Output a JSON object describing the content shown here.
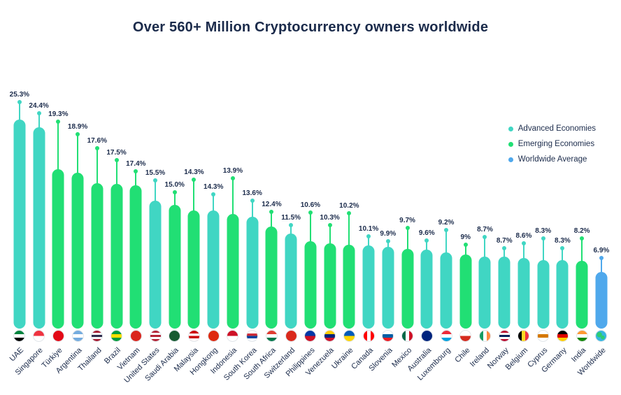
{
  "chart_data": {
    "type": "bar",
    "title": "Over 560+ Million Cryptocurrency owners worldwide",
    "unit": "%",
    "ylim": [
      0,
      26
    ],
    "grid": false,
    "legend_position": "right",
    "colors": {
      "advanced": "#40D6C3",
      "emerging": "#21DF74",
      "worldwide": "#4FA8EC",
      "title": "#1B2B4B",
      "label": "#1B2B4B"
    },
    "legend": [
      {
        "label": "Advanced Economies",
        "key": "advanced"
      },
      {
        "label": "Emerging Economies",
        "key": "emerging"
      },
      {
        "label": "Worldwide Average",
        "key": "worldwide"
      }
    ],
    "items": [
      {
        "name": "UAE",
        "label": "25.3%",
        "value": 25.3,
        "group": "advanced",
        "stem": 24,
        "flag": {
          "dir": "h",
          "stripes": [
            "#00843D",
            "#FFFFFF",
            "#000000"
          ]
        }
      },
      {
        "name": "Singapore",
        "label": "24.4%",
        "value": 24.4,
        "group": "advanced",
        "stem": 19,
        "flag": {
          "dir": "h",
          "stripes": [
            "#EF3340",
            "#FFFFFF"
          ]
        }
      },
      {
        "name": "Türkiye",
        "label": "19.3%",
        "value": 19.3,
        "group": "emerging",
        "stem": 67,
        "flag": {
          "dir": "h",
          "stripes": [
            "#E30A17"
          ]
        }
      },
      {
        "name": "Argentina",
        "label": "18.9%",
        "value": 18.9,
        "group": "emerging",
        "stem": 54,
        "flag": {
          "dir": "h",
          "stripes": [
            "#74ACDF",
            "#FFFFFF",
            "#74ACDF"
          ]
        }
      },
      {
        "name": "Thailand",
        "label": "17.6%",
        "value": 17.6,
        "group": "emerging",
        "stem": 49,
        "flag": {
          "dir": "h",
          "stripes": [
            "#A51931",
            "#F4F5F8",
            "#2D2A4A",
            "#F4F5F8",
            "#A51931"
          ]
        }
      },
      {
        "name": "Brazil",
        "label": "17.5%",
        "value": 17.5,
        "group": "emerging",
        "stem": 33,
        "flag": {
          "dir": "h",
          "stripes": [
            "#009C3B",
            "#FFDF00",
            "#009C3B"
          ]
        }
      },
      {
        "name": "Vietnam",
        "label": "17.4%",
        "value": 17.4,
        "group": "emerging",
        "stem": 19,
        "flag": {
          "dir": "h",
          "stripes": [
            "#DA251D"
          ]
        }
      },
      {
        "name": "United States",
        "label": "15.5%",
        "value": 15.5,
        "group": "advanced",
        "stem": 28,
        "flag": {
          "dir": "h",
          "stripes": [
            "#B22234",
            "#FFFFFF",
            "#B22234",
            "#FFFFFF",
            "#B22234"
          ]
        }
      },
      {
        "name": "Saudi Arabia",
        "label": "15.0%",
        "value": 15.0,
        "group": "emerging",
        "stem": 17,
        "flag": {
          "dir": "h",
          "stripes": [
            "#165B31"
          ]
        }
      },
      {
        "name": "Malaysia",
        "label": "14.3%",
        "value": 14.3,
        "group": "emerging",
        "stem": 43,
        "flag": {
          "dir": "h",
          "stripes": [
            "#CC0001",
            "#FFFFFF",
            "#CC0001",
            "#FFFFFF"
          ]
        }
      },
      {
        "name": "Hongkong",
        "label": "14.3%",
        "value": 14.3,
        "group": "advanced",
        "stem": 22,
        "flag": {
          "dir": "h",
          "stripes": [
            "#DE2910"
          ]
        }
      },
      {
        "name": "Indonesia",
        "label": "13.9%",
        "value": 13.9,
        "group": "emerging",
        "stem": 50,
        "flag": {
          "dir": "h",
          "stripes": [
            "#CE1126",
            "#FFFFFF"
          ]
        }
      },
      {
        "name": "South Korea",
        "label": "13.6%",
        "value": 13.6,
        "group": "advanced",
        "stem": 22,
        "flag": {
          "dir": "h",
          "stripes": [
            "#FFFFFF",
            "#CD2E3A",
            "#0047A0",
            "#FFFFFF"
          ]
        }
      },
      {
        "name": "South Africa",
        "label": "12.4%",
        "value": 12.4,
        "group": "emerging",
        "stem": 20,
        "flag": {
          "dir": "h",
          "stripes": [
            "#E03C31",
            "#FFFFFF",
            "#007749"
          ]
        }
      },
      {
        "name": "Switzerland",
        "label": "11.5%",
        "value": 11.5,
        "group": "advanced",
        "stem": 11,
        "flag": {
          "dir": "h",
          "stripes": [
            "#DA291C"
          ]
        }
      },
      {
        "name": "Philippines",
        "label": "10.6%",
        "value": 10.6,
        "group": "emerging",
        "stem": 40,
        "flag": {
          "dir": "h",
          "stripes": [
            "#0038A8",
            "#CE1126"
          ]
        }
      },
      {
        "name": "Venezuela",
        "label": "10.3%",
        "value": 10.3,
        "group": "emerging",
        "stem": 25,
        "flag": {
          "dir": "h",
          "stripes": [
            "#FFCC00",
            "#00247D",
            "#CF142B"
          ]
        }
      },
      {
        "name": "Ukraine",
        "label": "10.2%",
        "value": 10.2,
        "group": "emerging",
        "stem": 44,
        "flag": {
          "dir": "h",
          "stripes": [
            "#005BBB",
            "#FFD500"
          ]
        }
      },
      {
        "name": "Canada",
        "label": "10.1%",
        "value": 10.1,
        "group": "advanced",
        "stem": 12,
        "flag": {
          "dir": "v",
          "stripes": [
            "#FF0000",
            "#FFFFFF",
            "#FF0000"
          ]
        }
      },
      {
        "name": "Slovenia",
        "label": "9.9%",
        "value": 9.9,
        "group": "advanced",
        "stem": 7,
        "flag": {
          "dir": "h",
          "stripes": [
            "#FFFFFF",
            "#005DA4",
            "#ED1C24"
          ]
        }
      },
      {
        "name": "Mexico",
        "label": "9.7%",
        "value": 9.7,
        "group": "emerging",
        "stem": 29,
        "flag": {
          "dir": "v",
          "stripes": [
            "#006847",
            "#FFFFFF",
            "#CE1126"
          ]
        }
      },
      {
        "name": "Australia",
        "label": "9.6%",
        "value": 9.6,
        "group": "advanced",
        "stem": 12,
        "flag": {
          "dir": "h",
          "stripes": [
            "#00247D"
          ]
        }
      },
      {
        "name": "Luxembourg",
        "label": "9.2%",
        "value": 9.2,
        "group": "advanced",
        "stem": 31,
        "flag": {
          "dir": "h",
          "stripes": [
            "#ED2939",
            "#FFFFFF",
            "#00A1DE"
          ]
        }
      },
      {
        "name": "Chile",
        "label": "9%",
        "value": 9.0,
        "group": "emerging",
        "stem": 13,
        "flag": {
          "dir": "h",
          "stripes": [
            "#FFFFFF",
            "#D52B1E"
          ]
        }
      },
      {
        "name": "Ireland",
        "label": "8.7%",
        "value": 8.7,
        "group": "advanced",
        "stem": 27,
        "flag": {
          "dir": "v",
          "stripes": [
            "#169B62",
            "#FFFFFF",
            "#FF883E"
          ]
        }
      },
      {
        "name": "Norway",
        "label": "8.7%",
        "value": 8.7,
        "group": "advanced",
        "stem": 11,
        "flag": {
          "dir": "h",
          "stripes": [
            "#BA0C2F",
            "#FFFFFF",
            "#00205B",
            "#FFFFFF",
            "#BA0C2F"
          ]
        }
      },
      {
        "name": "Belgium",
        "label": "8.6%",
        "value": 8.6,
        "group": "advanced",
        "stem": 20,
        "flag": {
          "dir": "v",
          "stripes": [
            "#000000",
            "#FDDA24",
            "#EF3340"
          ]
        }
      },
      {
        "name": "Cyprus",
        "label": "8.3%",
        "value": 8.3,
        "group": "advanced",
        "stem": 30,
        "flag": {
          "dir": "h",
          "stripes": [
            "#FFFFFF",
            "#D57800",
            "#FFFFFF"
          ]
        }
      },
      {
        "name": "Germany",
        "label": "8.3%",
        "value": 8.3,
        "group": "advanced",
        "stem": 16,
        "flag": {
          "dir": "h",
          "stripes": [
            "#000000",
            "#DD0000",
            "#FFCE00"
          ]
        }
      },
      {
        "name": "India",
        "label": "8.2%",
        "value": 8.2,
        "group": "emerging",
        "stem": 31,
        "flag": {
          "dir": "h",
          "stripes": [
            "#FF9933",
            "#FFFFFF",
            "#138808"
          ]
        }
      },
      {
        "name": "Worldwide",
        "label": "6.9%",
        "value": 6.9,
        "group": "worldwide",
        "stem": 19,
        "flag": {
          "dir": "globe",
          "stripes": [
            "#35B6E0",
            "#2ECC71"
          ]
        }
      }
    ]
  }
}
